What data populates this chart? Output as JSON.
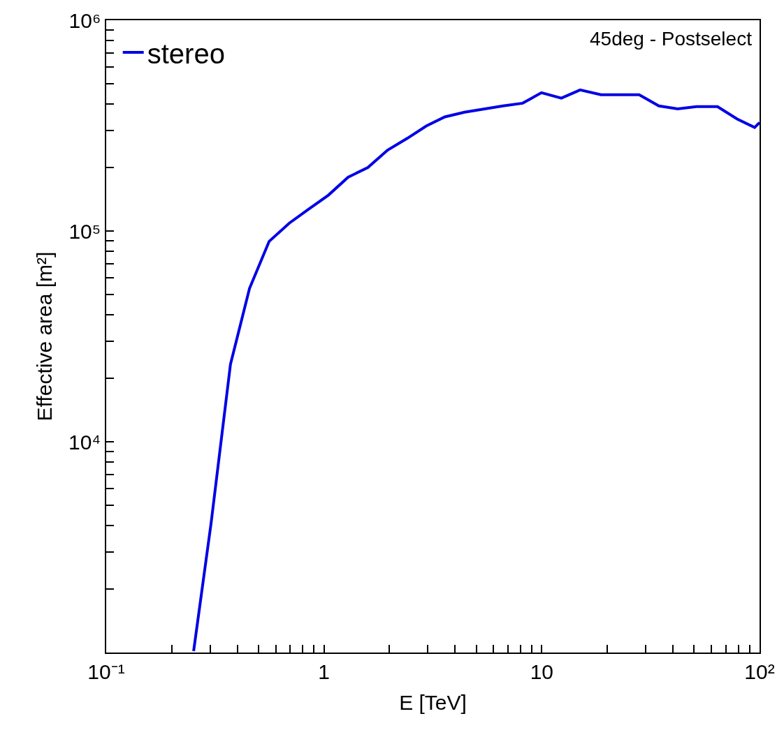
{
  "chart_data": {
    "type": "line",
    "xlabel": "E [TeV]",
    "ylabel": "Effective area [m²]",
    "annotations": [
      "45deg - Postselect"
    ],
    "log": "xy",
    "xlim": [
      0.1,
      100
    ],
    "ylim": [
      1000,
      1000000
    ],
    "xticks": [
      {
        "value": 0.1,
        "label": "10⁻¹"
      },
      1,
      10,
      {
        "value": 100,
        "label": "10²"
      }
    ],
    "yticks": [
      {
        "value": 10000,
        "label": "10⁴"
      },
      {
        "value": 100000,
        "label": "10⁵"
      },
      {
        "value": 1000000,
        "label": "10⁶"
      }
    ],
    "legend": "top left",
    "line_style": "solid",
    "marker": "none",
    "series": [
      {
        "name": "stereo",
        "color": "#0000e6",
        "x": [
          0.252,
          0.303,
          0.372,
          0.455,
          0.56,
          0.693,
          0.851,
          1.048,
          1.29,
          1.59,
          1.96,
          2.41,
          2.95,
          3.59,
          4.42,
          6.64,
          8.17,
          9.97,
          12.3,
          15.0,
          18.7,
          28.0,
          34.5,
          42.1,
          51.4,
          64.1,
          78.9,
          94.9,
          100
        ],
        "values": [
          1016,
          4100,
          23300,
          53400,
          89300,
          109000,
          127000,
          148000,
          180000,
          200000,
          242000,
          275000,
          315000,
          348000,
          366000,
          392000,
          404000,
          453000,
          427000,
          467000,
          443000,
          443000,
          392000,
          380000,
          389000,
          389000,
          340000,
          310000,
          327000
        ]
      }
    ]
  }
}
